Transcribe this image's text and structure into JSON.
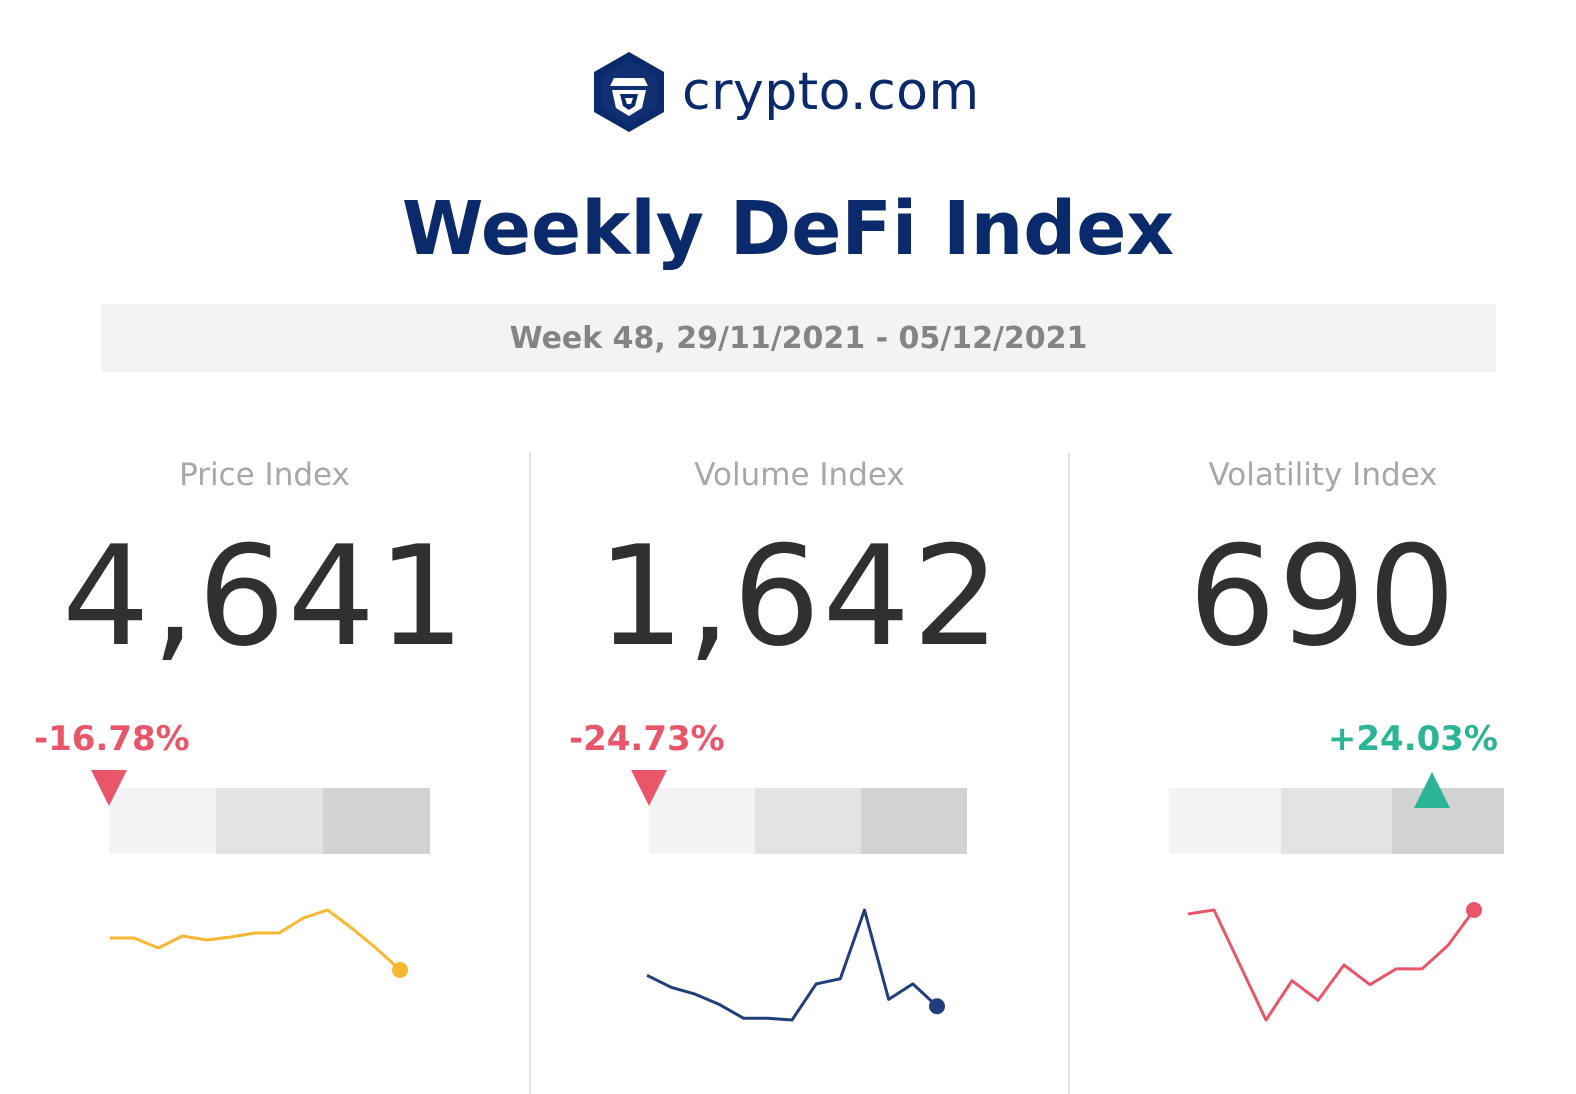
{
  "brand": {
    "name": "crypto.com",
    "logo_icon": "crypto-lion-shield-icon",
    "color": "#0b2a6b"
  },
  "title": "Weekly DeFi Index",
  "week_range": "Week 48, 29/11/2021 - 05/12/2021",
  "colors": {
    "negative": "#e9566a",
    "positive": "#2bb596",
    "gauge_light": "#f4f4f4",
    "gauge_mid": "#e3e3e3",
    "gauge_dark": "#d2d2d2"
  },
  "indices": [
    {
      "label": "Price Index",
      "value": "4,641",
      "change": "-16.78%",
      "direction": "down",
      "gauge_position_fraction": 0.0,
      "spark_color": "#f7b733",
      "spark": [
        50,
        50,
        40,
        52,
        48,
        51,
        55,
        55,
        70,
        78,
        60,
        40,
        18
      ]
    },
    {
      "label": "Volume Index",
      "value": "1,642",
      "change": "-24.73%",
      "direction": "down",
      "gauge_position_fraction": 0.0,
      "spark_color": "#203e7b",
      "spark": [
        35,
        28,
        24,
        18,
        10,
        10,
        9,
        30,
        33,
        73,
        21,
        30,
        17
      ]
    },
    {
      "label": "Volatility Index",
      "value": "690",
      "change": "+24.03%",
      "direction": "up",
      "gauge_position_fraction": 0.72,
      "spark_color": "#e9566a",
      "spark": [
        56,
        58,
        30,
        2,
        22,
        12,
        30,
        20,
        28,
        28,
        40,
        58
      ]
    }
  ]
}
